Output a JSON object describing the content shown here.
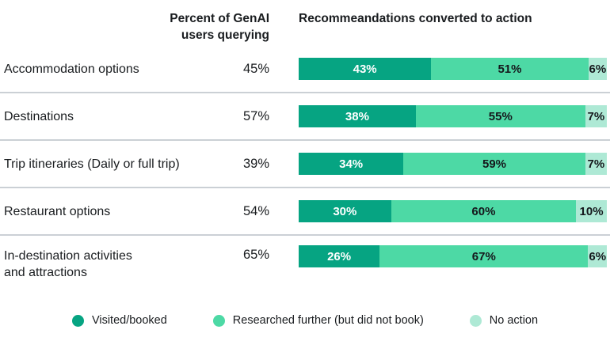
{
  "header": {
    "percent_col_line1": "Percent of GenAI",
    "percent_col_line2": "users querying",
    "bars_col": "Recommeandations converted to action"
  },
  "chart_data": {
    "type": "bar",
    "orientation": "horizontal",
    "stacked": true,
    "title": "",
    "querying_header": "Percent of GenAI users querying",
    "bars_header": "Recommeandations converted to action",
    "categories": [
      "Accommodation options",
      "Destinations",
      "Trip itineraries (Daily or full trip)",
      "Restaurant options",
      "In-destination activities and attractions"
    ],
    "category_lines": [
      [
        "Accommodation options"
      ],
      [
        "Destinations"
      ],
      [
        "Trip itineraries (Daily or full trip)"
      ],
      [
        "Restaurant options"
      ],
      [
        "In-destination activities",
        "and attractions"
      ]
    ],
    "percent_querying": [
      45,
      57,
      39,
      54,
      65
    ],
    "series": [
      {
        "name": "Visited/booked",
        "color": "#06a482",
        "values": [
          43,
          38,
          34,
          30,
          26
        ]
      },
      {
        "name": "Researched further (but did not book)",
        "color": "#4dd9a5",
        "values": [
          51,
          55,
          59,
          60,
          67
        ]
      },
      {
        "name": "No action",
        "color": "#aee9d5",
        "values": [
          6,
          7,
          7,
          10,
          6
        ]
      }
    ],
    "value_suffix": "%",
    "xlim": [
      0,
      100
    ],
    "grid": false,
    "legend_position": "bottom"
  },
  "colors": {
    "divider": "#cbd0d5",
    "text": "#191c1f",
    "bar_label_on_dark": "#ffffff",
    "bar_label_on_light": "#15181c"
  }
}
